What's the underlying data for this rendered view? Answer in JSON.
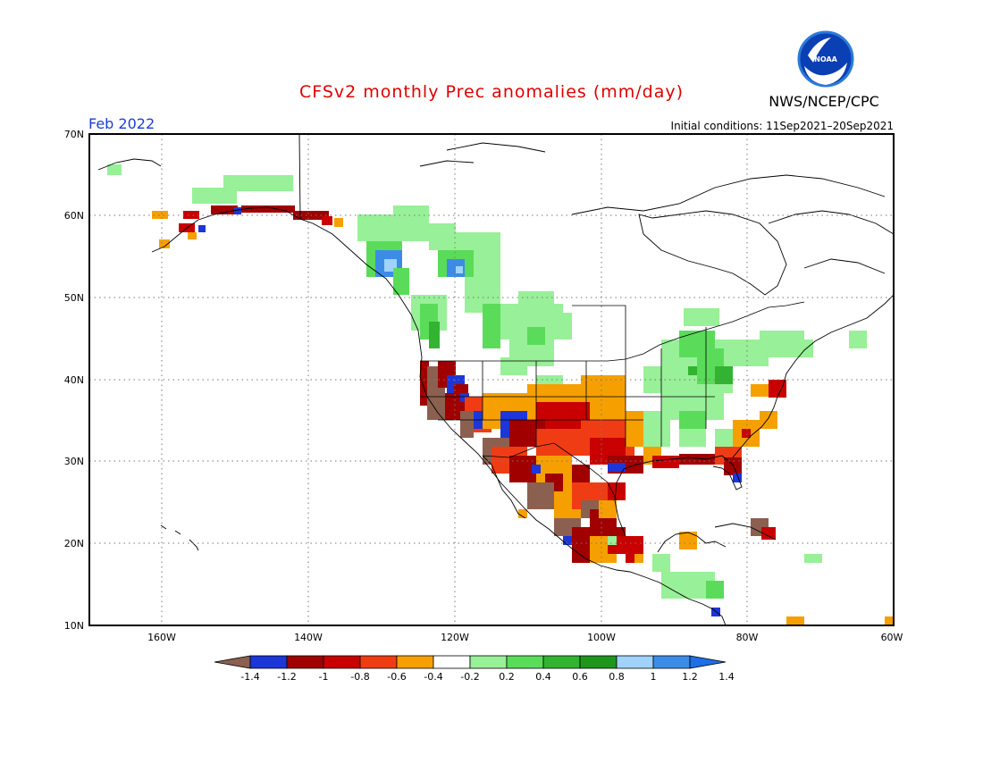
{
  "header": {
    "title": "CFSv2 monthly Prec anomalies (mm/day)",
    "org": "NWS/NCEP/CPC",
    "logo_text": "NOAA",
    "month": "Feb 2022",
    "initial_conditions": "Initial conditions: 11Sep2021–20Sep2021"
  },
  "map": {
    "lat_labels": [
      "70N",
      "60N",
      "50N",
      "40N",
      "30N",
      "20N",
      "10N"
    ],
    "lon_labels": [
      "160W",
      "140W",
      "120W",
      "100W",
      "80W",
      "60W"
    ]
  },
  "colorbar": {
    "tick_labels": [
      "-1.4",
      "-1.2",
      "-1",
      "-0.8",
      "-0.6",
      "-0.4",
      "-0.2",
      "0.2",
      "0.4",
      "0.6",
      "0.8",
      "1",
      "1.2",
      "1.4"
    ],
    "colors": [
      "#8b6050",
      "#1c36d8",
      "#a00000",
      "#c80000",
      "#f03c14",
      "#f5a000",
      "#ffffff",
      "#98f098",
      "#5adc5a",
      "#32b432",
      "#1e961e",
      "#a0d2fa",
      "#3c8ce6",
      "#1e6ee6"
    ]
  },
  "palette": {
    "brown": "#8b6050",
    "dkblue": "#1c36d8",
    "dkred": "#a00000",
    "red": "#c80000",
    "redorange": "#f03c14",
    "orange": "#f5a000",
    "ltgreen": "#98f098",
    "green": "#5adc5a",
    "dkgreen": "#32b432",
    "ltblue": "#a0d2fa",
    "blue": "#3c8ce6"
  }
}
